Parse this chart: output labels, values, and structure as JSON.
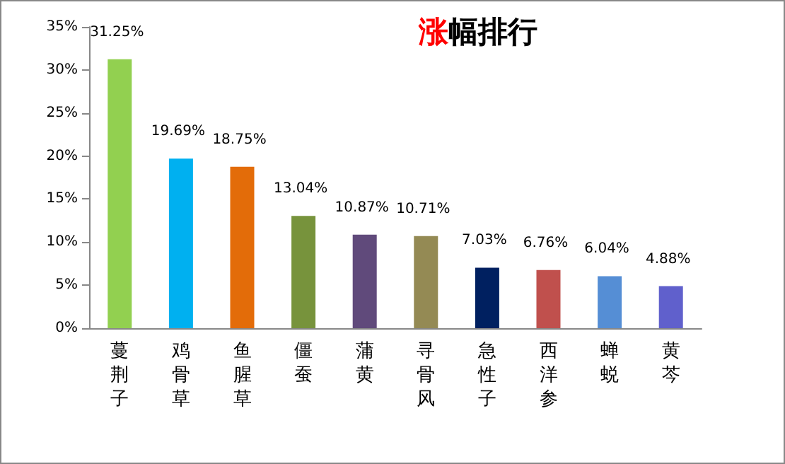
{
  "chart_data": {
    "type": "bar",
    "title": "涨幅排行",
    "categories": [
      "蔓荆子",
      "鸡骨草",
      "鱼腥草",
      "僵蚕",
      "蒲黄",
      "寻骨风",
      "急性子",
      "西洋参",
      "蝉蜕",
      "黄芩"
    ],
    "values": [
      31.25,
      19.69,
      18.75,
      13.04,
      10.87,
      10.71,
      7.03,
      6.76,
      6.04,
      4.88
    ],
    "colors": [
      "#92d050",
      "#00b0f0",
      "#e36c09",
      "#77933c",
      "#604a7b",
      "#948a54",
      "#002060",
      "#c0504d",
      "#558ed5",
      "#6060cc"
    ],
    "value_labels": [
      "31.25%",
      "19.69%",
      "18.75%",
      "13.04%",
      "10.87%",
      "10.71%",
      "7.03%",
      "6.76%",
      "6.04%",
      "4.88%"
    ],
    "ylim": [
      0,
      35
    ],
    "yticks": [
      {
        "value": 0,
        "label": "0%"
      },
      {
        "value": 5,
        "label": "5%"
      },
      {
        "value": 10,
        "label": "10%"
      },
      {
        "value": 15,
        "label": "15%"
      },
      {
        "value": 20,
        "label": "20%"
      },
      {
        "value": 25,
        "label": "25%"
      },
      {
        "value": 30,
        "label": "30%"
      },
      {
        "value": 35,
        "label": "35%"
      }
    ],
    "grid": false
  }
}
